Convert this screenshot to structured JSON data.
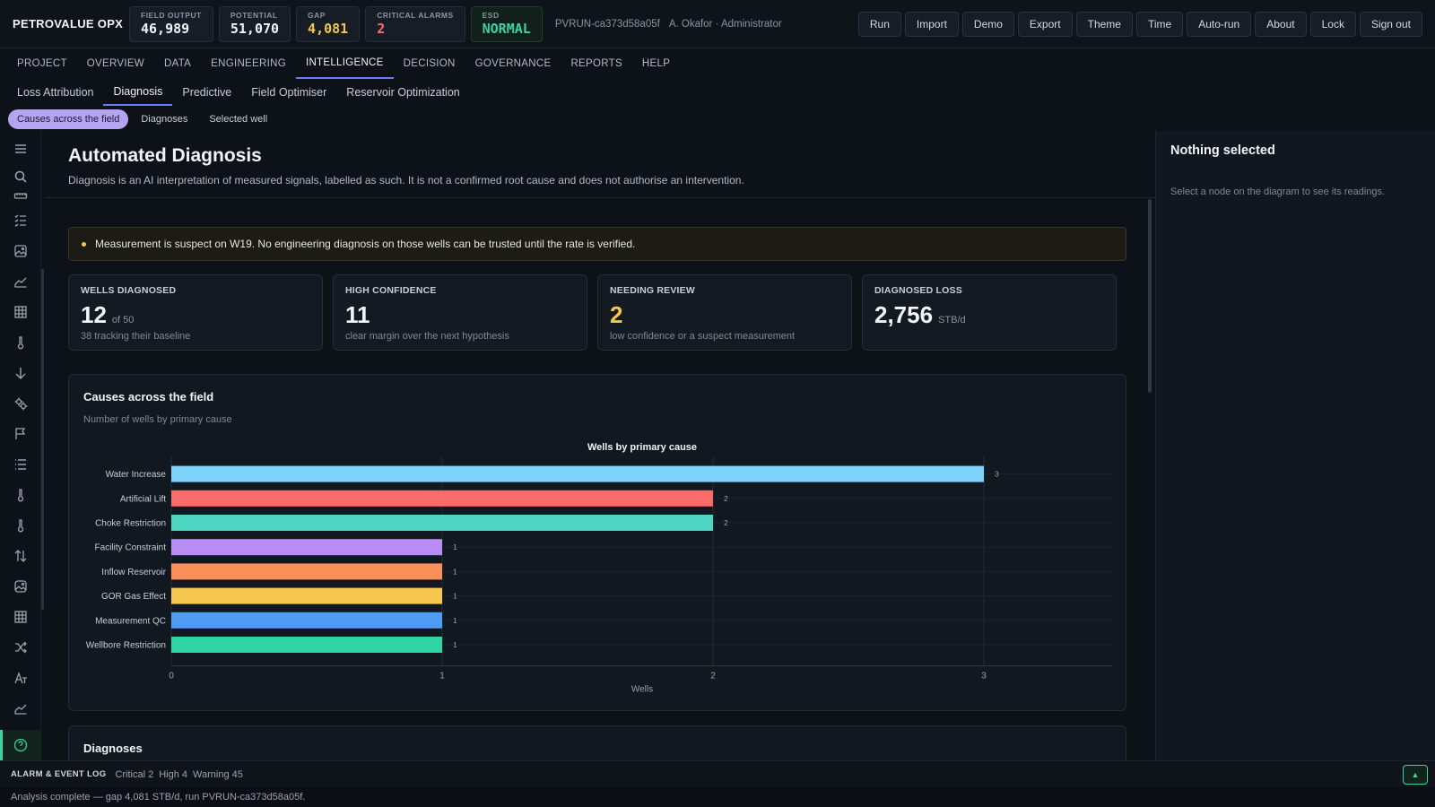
{
  "app": {
    "brand": "PETROVALUE OPX"
  },
  "kpis": [
    {
      "label": "FIELD OUTPUT",
      "value": "46,989",
      "tone": "normal"
    },
    {
      "label": "POTENTIAL",
      "value": "51,070",
      "tone": "normal"
    },
    {
      "label": "GAP",
      "value": "4,081",
      "tone": "warn"
    },
    {
      "label": "CRITICAL ALARMS",
      "value": "2",
      "tone": "crit"
    },
    {
      "label": "ESD",
      "value": "NORMAL",
      "tone": "ok"
    }
  ],
  "run_id": "PVRUN-ca373d58a05f",
  "user": "A. Okafor · Administrator",
  "top_actions": [
    "Run",
    "Import",
    "Demo",
    "Export",
    "Theme",
    "Time",
    "Auto-run",
    "About",
    "Lock",
    "Sign out"
  ],
  "main_nav": [
    "PROJECT",
    "OVERVIEW",
    "DATA",
    "ENGINEERING",
    "INTELLIGENCE",
    "DECISION",
    "GOVERNANCE",
    "REPORTS",
    "HELP"
  ],
  "main_nav_active": "INTELLIGENCE",
  "sub_nav": [
    "Loss Attribution",
    "Diagnosis",
    "Predictive",
    "Field Optimiser",
    "Reservoir Optimization"
  ],
  "sub_nav_active": "Diagnosis",
  "pill_nav": [
    "Causes across the field",
    "Diagnoses",
    "Selected well"
  ],
  "pill_nav_active": "Causes across the field",
  "rail_icons": [
    "menu-icon",
    "search-icon",
    "ruler-icon",
    "checklist-icon",
    "image-icon",
    "area-chart-icon",
    "table-icon",
    "thermometer-icon",
    "arrow-down-icon",
    "gears-icon",
    "flag-icon",
    "list-icon",
    "thermometer-icon",
    "thermometer-icon",
    "sort-arrows-icon",
    "image-icon",
    "table-icon",
    "shuffle-icon",
    "translate-icon",
    "area-chart-icon",
    "help-icon"
  ],
  "page": {
    "title": "Automated Diagnosis",
    "subtitle": "Diagnosis is an AI interpretation of measured signals, labelled as such. It is not a confirmed root cause and does not authorise an intervention."
  },
  "warning": "Measurement is suspect on W19. No engineering diagnosis on those wells can be trusted until the rate is verified.",
  "stats": [
    {
      "label": "WELLS DIAGNOSED",
      "value": "12",
      "unit": "of 50",
      "note": "38 tracking their baseline",
      "tone": "normal"
    },
    {
      "label": "HIGH CONFIDENCE",
      "value": "11",
      "unit": "",
      "note": "clear margin over the next hypothesis",
      "tone": "normal"
    },
    {
      "label": "NEEDING REVIEW",
      "value": "2",
      "unit": "",
      "note": "low confidence or a suspect measurement",
      "tone": "warn"
    },
    {
      "label": "DIAGNOSED LOSS",
      "value": "2,756",
      "unit": "STB/d",
      "note": "",
      "tone": "normal"
    }
  ],
  "chart_card": {
    "title": "Causes across the field",
    "subtitle": "Number of wells by primary cause"
  },
  "chart_data": {
    "type": "bar",
    "orientation": "horizontal",
    "title": "Wells by primary cause",
    "xlabel": "Wells",
    "ylabel": "",
    "categories": [
      "Water Increase",
      "Artificial Lift",
      "Choke Restriction",
      "Facility Constraint",
      "Inflow Reservoir",
      "GOR Gas Effect",
      "Measurement QC",
      "Wellbore Restriction"
    ],
    "values": [
      3,
      2,
      2,
      1,
      1,
      1,
      1,
      1
    ],
    "colors": [
      "#7fd3fb",
      "#fb6b6b",
      "#4fd6c2",
      "#b98cf7",
      "#fb8f5a",
      "#f7c84f",
      "#4f9cf7",
      "#2fd6a4"
    ],
    "xlim": [
      0,
      3
    ],
    "xticks": [
      0,
      1,
      2,
      3
    ],
    "grid": true,
    "legend": "none"
  },
  "diagnoses_card": {
    "title": "Diagnoses"
  },
  "side_panel": {
    "title": "Nothing selected",
    "text": "Select a node on the diagram to see its readings."
  },
  "alarm_bar": {
    "label": "ALARM & EVENT LOG",
    "counts": [
      "Critical 2",
      "High 4",
      "Warning 45"
    ]
  },
  "status": "Analysis complete — gap 4,081 STB/d, run PVRUN-ca373d58a05f."
}
